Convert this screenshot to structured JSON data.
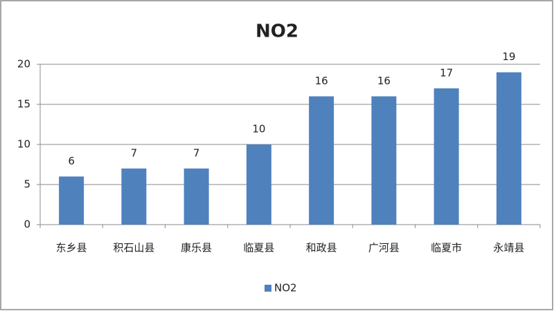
{
  "chart_data": {
    "type": "bar",
    "title": "NO2",
    "categories": [
      "东乡县",
      "积石山县",
      "康乐县",
      "临夏县",
      "和政县",
      "广河县",
      "临夏市",
      "永靖县"
    ],
    "series": [
      {
        "name": "NO2",
        "color": "#4f81bd",
        "values": [
          6,
          7,
          7,
          10,
          16,
          16,
          17,
          19
        ]
      }
    ],
    "ylim": [
      0,
      20
    ],
    "yticks": [
      0,
      5,
      10,
      15,
      20
    ],
    "grid": true,
    "legend": "bottom"
  }
}
